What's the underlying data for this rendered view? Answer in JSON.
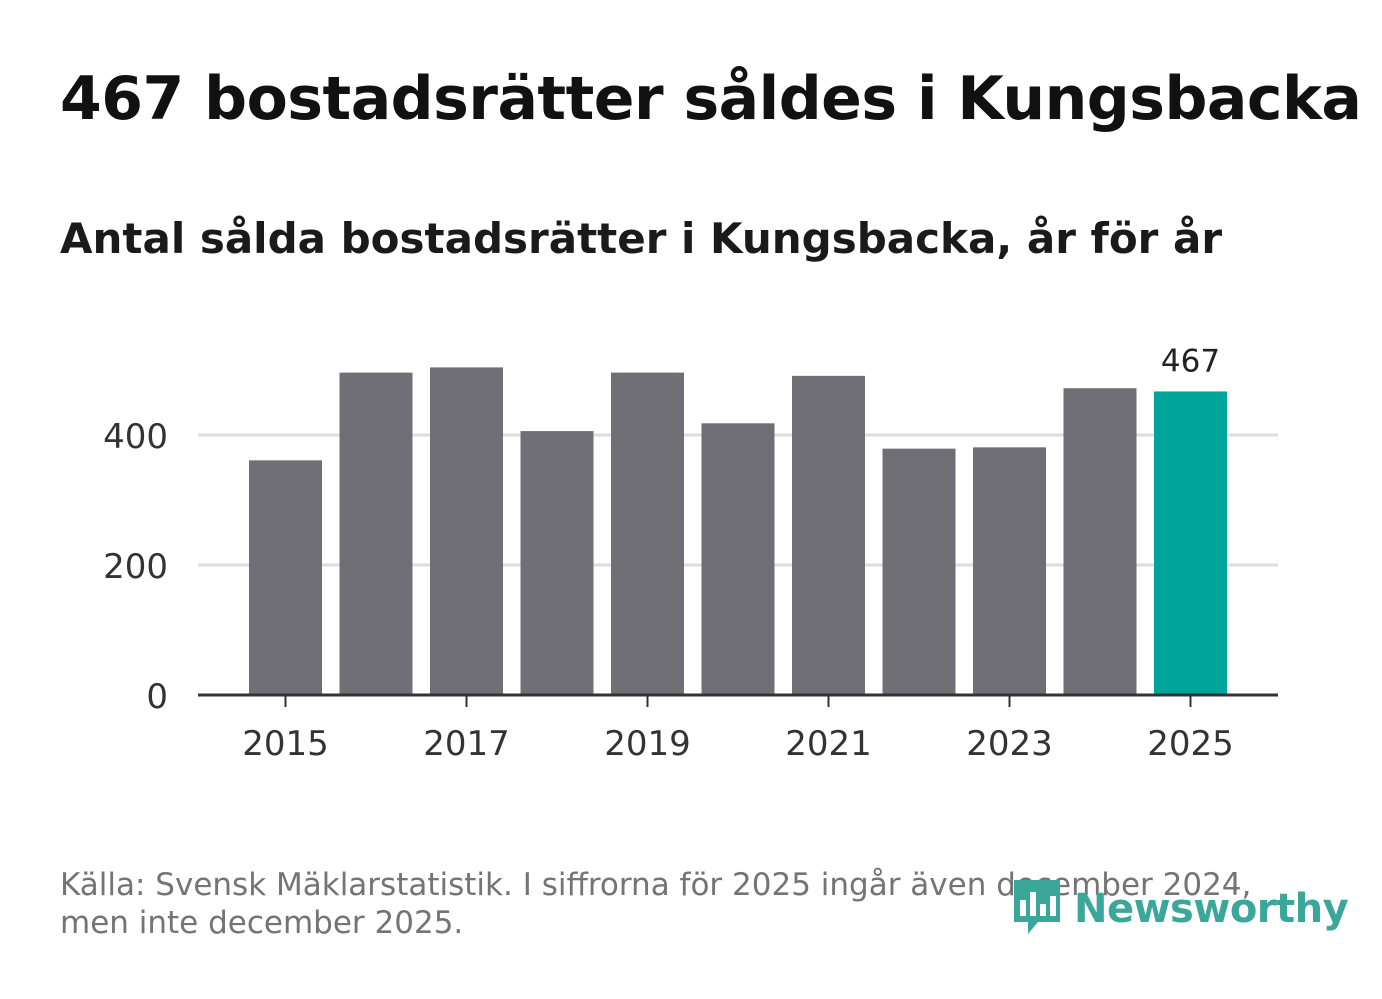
{
  "header": {
    "title": "467 bostadsrätter såldes i Kungsbacka",
    "subtitle": "Antal sålda bostadsrätter i Kungsbacka, år för år"
  },
  "chart_data": {
    "type": "bar",
    "categories": [
      "2015",
      "2016",
      "2017",
      "2018",
      "2019",
      "2020",
      "2021",
      "2022",
      "2023",
      "2024",
      "2025"
    ],
    "values": [
      361,
      496,
      504,
      406,
      496,
      418,
      491,
      379,
      381,
      472,
      467
    ],
    "highlight_index": 10,
    "highlight_label": "467",
    "x_tick_labels": [
      "2015",
      "2017",
      "2019",
      "2021",
      "2023",
      "2025"
    ],
    "y_ticks": [
      0,
      200,
      400
    ],
    "ylim": [
      0,
      520
    ],
    "grid": true,
    "xlabel": "",
    "ylabel": ""
  },
  "colors": {
    "bar": "#706f75",
    "highlight": "#00a59a",
    "grid": "#dedede",
    "axis": "#333333",
    "logo": "#3aa79a"
  },
  "footer": {
    "source_line1": "Källa: Svensk Mäklarstatistik. I siffrorna för 2025 ingår även december 2024,",
    "source_line2": "men inte december 2025.",
    "logo_text": "Newsworthy",
    "logo_icon": "newsworthy-chat-bars-icon"
  }
}
